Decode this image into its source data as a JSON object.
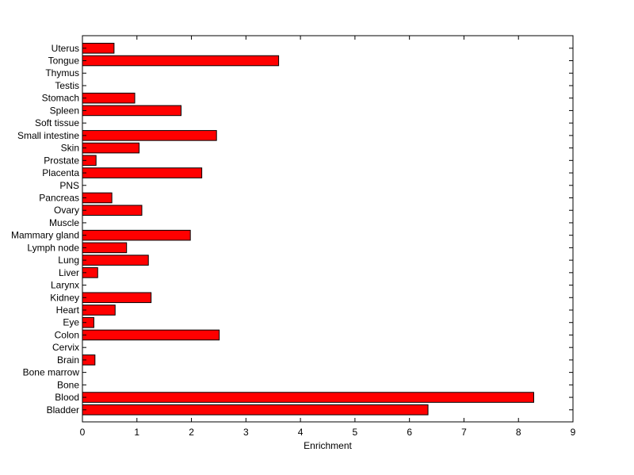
{
  "chart_data": {
    "type": "bar",
    "orientation": "horizontal",
    "title": "",
    "xlabel": "Enrichment",
    "ylabel": "",
    "xlim": [
      0,
      9
    ],
    "xticks": [
      "0",
      "1",
      "2",
      "3",
      "4",
      "5",
      "6",
      "7",
      "8",
      "9"
    ],
    "grid": false,
    "legend": "none",
    "bar_color": "#ff0000",
    "categories": [
      "Uterus",
      "Tongue",
      "Thymus",
      "Testis",
      "Stomach",
      "Spleen",
      "Soft tissue",
      "Small intestine",
      "Skin",
      "Prostate",
      "Placenta",
      "PNS",
      "Pancreas",
      "Ovary",
      "Muscle",
      "Mammary gland",
      "Lymph node",
      "Lung",
      "Liver",
      "Larynx",
      "Kidney",
      "Heart",
      "Eye",
      "Colon",
      "Cervix",
      "Brain",
      "Bone marrow",
      "Bone",
      "Blood",
      "Bladder"
    ],
    "values": [
      0.58,
      3.6,
      0,
      0,
      0.96,
      1.81,
      0,
      2.46,
      1.04,
      0.25,
      2.19,
      0,
      0.54,
      1.09,
      0,
      1.98,
      0.81,
      1.21,
      0.28,
      0,
      1.26,
      0.6,
      0.21,
      2.51,
      0,
      0.23,
      0,
      0,
      8.28,
      6.34
    ]
  }
}
